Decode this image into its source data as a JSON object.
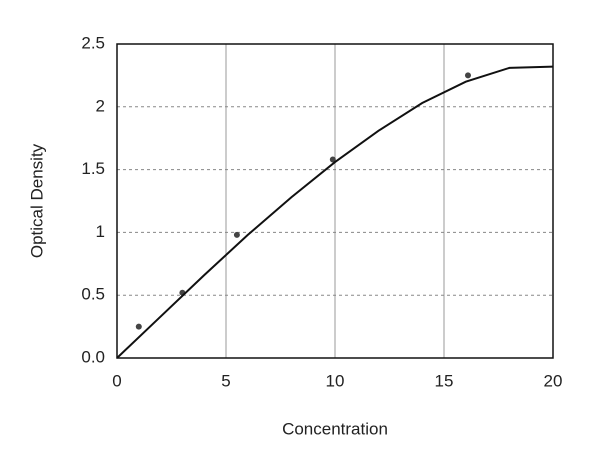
{
  "chart_data": {
    "type": "scatter",
    "x_label": "Concentration",
    "y_label": "Optical Density",
    "xlim": [
      0,
      20
    ],
    "ylim": [
      0,
      2.5
    ],
    "xticks": [
      0,
      5,
      10,
      15,
      20
    ],
    "yticks": [
      {
        "value": 0,
        "label": "0.0"
      },
      0.5,
      1,
      1.5,
      2,
      2.5
    ],
    "grid": true,
    "series": [
      {
        "color": "#444444",
        "x": [
          1,
          3,
          5.5,
          9.9,
          16.1
        ],
        "values": [
          0.25,
          0.52,
          0.98,
          1.58,
          2.25
        ]
      },
      {
        "type": "line",
        "color": "#111111",
        "x": [
          0,
          2,
          4,
          6,
          8,
          10,
          12,
          14,
          16,
          18,
          20
        ],
        "values": [
          0,
          0.33,
          0.66,
          0.98,
          1.28,
          1.56,
          1.81,
          2.03,
          2.2,
          2.31,
          2.32
        ]
      }
    ]
  }
}
